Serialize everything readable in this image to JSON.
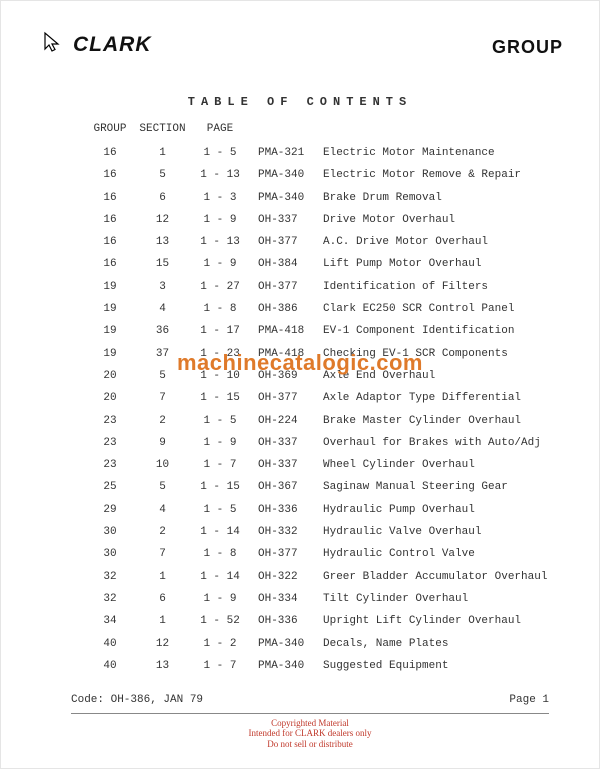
{
  "header": {
    "brand": "CLARK",
    "group_label": "GROUP"
  },
  "toc": {
    "title": "TABLE OF CONTENTS",
    "columns": {
      "group": "GROUP",
      "section": "SECTION",
      "page": "PAGE"
    },
    "rows": [
      {
        "group": "16",
        "section": "1",
        "page": "1 - 5",
        "code": "PMA-321",
        "desc": "Electric Motor Maintenance"
      },
      {
        "group": "16",
        "section": "5",
        "page": "1 - 13",
        "code": "PMA-340",
        "desc": "Electric Motor Remove & Repair"
      },
      {
        "group": "16",
        "section": "6",
        "page": "1 - 3",
        "code": "PMA-340",
        "desc": "Brake Drum Removal"
      },
      {
        "group": "16",
        "section": "12",
        "page": "1 - 9",
        "code": "OH-337",
        "desc": "Drive Motor Overhaul"
      },
      {
        "group": "16",
        "section": "13",
        "page": "1 - 13",
        "code": "OH-377",
        "desc": "A.C. Drive Motor Overhaul"
      },
      {
        "group": "16",
        "section": "15",
        "page": "1 - 9",
        "code": "OH-384",
        "desc": "Lift Pump Motor Overhaul"
      },
      {
        "group": "19",
        "section": "3",
        "page": "1 - 27",
        "code": "OH-377",
        "desc": "Identification of Filters"
      },
      {
        "group": "19",
        "section": "4",
        "page": "1 - 8",
        "code": "OH-386",
        "desc": "Clark EC250 SCR Control Panel"
      },
      {
        "group": "19",
        "section": "36",
        "page": "1 - 17",
        "code": "PMA-418",
        "desc": "EV-1 Component Identification"
      },
      {
        "group": "19",
        "section": "37",
        "page": "1 - 23",
        "code": "PMA-418",
        "desc": "Checking EV-1 SCR Components"
      },
      {
        "group": "20",
        "section": "5",
        "page": "1 - 10",
        "code": "OH-369",
        "desc": "Axle End Overhaul"
      },
      {
        "group": "20",
        "section": "7",
        "page": "1 - 15",
        "code": "OH-377",
        "desc": "Axle Adaptor Type Differential"
      },
      {
        "group": "23",
        "section": "2",
        "page": "1 - 5",
        "code": "OH-224",
        "desc": "Brake Master Cylinder Overhaul"
      },
      {
        "group": "23",
        "section": "9",
        "page": "1 - 9",
        "code": "OH-337",
        "desc": "Overhaul for Brakes with Auto/Adj"
      },
      {
        "group": "23",
        "section": "10",
        "page": "1 - 7",
        "code": "OH-337",
        "desc": "Wheel Cylinder Overhaul"
      },
      {
        "group": "25",
        "section": "5",
        "page": "1 - 15",
        "code": "OH-367",
        "desc": "Saginaw Manual Steering Gear"
      },
      {
        "group": "29",
        "section": "4",
        "page": "1 - 5",
        "code": "OH-336",
        "desc": "Hydraulic Pump Overhaul"
      },
      {
        "group": "30",
        "section": "2",
        "page": "1 - 14",
        "code": "OH-332",
        "desc": "Hydraulic Valve Overhaul"
      },
      {
        "group": "30",
        "section": "7",
        "page": "1 - 8",
        "code": "OH-377",
        "desc": "Hydraulic Control Valve"
      },
      {
        "group": "32",
        "section": "1",
        "page": "1 - 14",
        "code": "OH-322",
        "desc": "Greer Bladder Accumulator Overhaul"
      },
      {
        "group": "32",
        "section": "6",
        "page": "1 - 9",
        "code": "OH-334",
        "desc": "Tilt Cylinder Overhaul"
      },
      {
        "group": "34",
        "section": "1",
        "page": "1 - 52",
        "code": "OH-336",
        "desc": "Upright Lift Cylinder Overhaul"
      },
      {
        "group": "40",
        "section": "12",
        "page": "1 - 2",
        "code": "PMA-340",
        "desc": "Decals, Name Plates"
      },
      {
        "group": "40",
        "section": "13",
        "page": "1 - 7",
        "code": "PMA-340",
        "desc": "Suggested Equipment"
      }
    ]
  },
  "watermark": {
    "text_left": "machinecatalogic",
    "dot": ".",
    "text_right": "com",
    "color": "#df7a2a"
  },
  "footer": {
    "code": "Code: OH-386, JAN 79",
    "page": "Page 1",
    "copyright_line1": "Copyrighted Material",
    "copyright_line2": "Intended for CLARK dealers only",
    "copyright_line3": "Do not sell or distribute"
  }
}
